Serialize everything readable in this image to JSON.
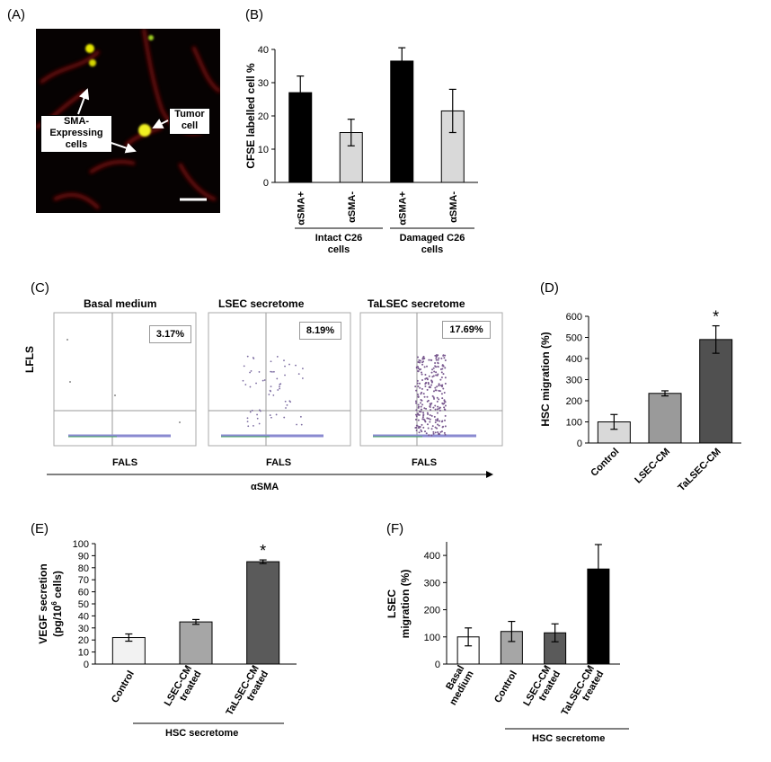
{
  "panels": {
    "A": {
      "label": "(A)",
      "callouts": {
        "sma": "SMA-\nExpressing\ncells",
        "tumor": "Tumor\ncell"
      }
    },
    "B": {
      "label": "(B)"
    },
    "C": {
      "label": "(C)",
      "titles": [
        "Basal medium",
        "LSEC secretome",
        "TaLSEC secretome"
      ],
      "percents": [
        "3.17%",
        "8.19%",
        "17.69%"
      ],
      "ylabel": "LFLS",
      "xlabels": [
        "FALS",
        "FALS",
        "FALS"
      ],
      "arrow_label": "αSMA"
    },
    "D": {
      "label": "(D)"
    },
    "E": {
      "label": "(E)",
      "bracket_label": "HSC secretome"
    },
    "F": {
      "label": "(F)",
      "bracket_label": "HSC secretome"
    }
  },
  "chart_data": [
    {
      "id": "B",
      "type": "bar",
      "categories": [
        "αSMA+",
        "αSMA-",
        "αSMA+",
        "αSMA-"
      ],
      "values": [
        27,
        15,
        36.5,
        21.5
      ],
      "errors": [
        5,
        4,
        4,
        6.5
      ],
      "colors": [
        "#000000",
        "#d9d9d9",
        "#000000",
        "#d9d9d9"
      ],
      "groups": [
        "Intact C26\ncells",
        "Damaged C26\ncells"
      ],
      "ylabel": "CFSE labelled cell %",
      "ylim": [
        0,
        40
      ],
      "yticks": [
        "0",
        "10",
        "20",
        "30",
        "40"
      ]
    },
    {
      "id": "D",
      "type": "bar",
      "categories": [
        "Control",
        "LSEC-CM",
        "TaLSEC-CM"
      ],
      "values": [
        100,
        235,
        490
      ],
      "errors": [
        35,
        12,
        65
      ],
      "colors": [
        "#d9d9d9",
        "#9a9a9a",
        "#505050"
      ],
      "significance": [
        "",
        "",
        "*"
      ],
      "ylabel": "HSC migration (%)",
      "ylim": [
        0,
        600
      ],
      "yticks": [
        "0",
        "100",
        "200",
        "300",
        "400",
        "500",
        "600"
      ]
    },
    {
      "id": "E",
      "type": "bar",
      "categories": [
        "Control",
        "LSEC-CM\ntreated",
        "TaLSEC-CM\ntreated"
      ],
      "values": [
        22,
        35,
        85
      ],
      "errors": [
        3,
        2,
        1.5
      ],
      "colors": [
        "#f2f2f2",
        "#a6a6a6",
        "#5a5a5a"
      ],
      "significance": [
        "",
        "",
        "*"
      ],
      "ylabel_line1": "VEGF secretion",
      "ylabel_line2": "(pg/10",
      "ylabel_sup": "6",
      "ylabel_line2_end": " cells)",
      "ylim": [
        0,
        100
      ],
      "yticks": [
        "0",
        "10",
        "20",
        "30",
        "40",
        "50",
        "60",
        "70",
        "80",
        "90",
        "100"
      ]
    },
    {
      "id": "F",
      "type": "bar",
      "categories": [
        "Basal\nmedium",
        "Control",
        "LSEC-CM\ntreated",
        "TaLSEC-CM\ntreated"
      ],
      "values": [
        100,
        120,
        115,
        350
      ],
      "errors": [
        33,
        37,
        33,
        90
      ],
      "colors": [
        "#ffffff",
        "#a6a6a6",
        "#5a5a5a",
        "#000000"
      ],
      "ylabel_line1": "LSEC",
      "ylabel_line2": "migration (%)",
      "ylim": [
        0,
        450
      ],
      "yticks": [
        "0",
        "100",
        "200",
        "300",
        "400"
      ]
    }
  ]
}
